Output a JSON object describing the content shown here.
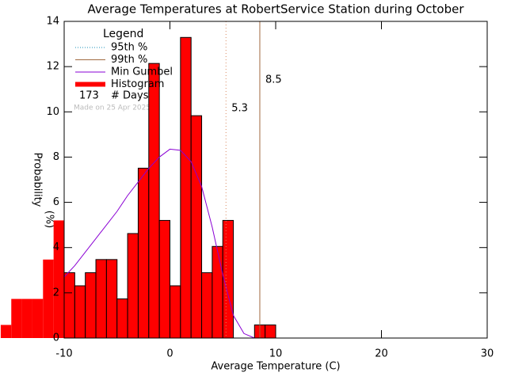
{
  "chart_data": {
    "type": "histogram",
    "title": "Average Temperatures at RobertService Station during October",
    "xlabel": "Average Temperature (C)",
    "ylabel": [
      "Probability",
      "(%)"
    ],
    "bins": [
      -16,
      -15,
      -14,
      -13,
      -12,
      -11,
      -10,
      -9,
      -8,
      -7,
      -6,
      -5,
      -4,
      -3,
      -2,
      -1,
      0,
      1,
      2,
      3,
      4,
      5,
      6,
      7,
      8,
      9,
      10
    ],
    "values": [
      0.58,
      1.73,
      1.73,
      1.73,
      3.47,
      5.2,
      2.89,
      2.31,
      2.89,
      3.47,
      3.47,
      1.73,
      4.62,
      7.51,
      12.14,
      5.2,
      2.31,
      13.29,
      9.83,
      2.89,
      4.05,
      5.2,
      0,
      0,
      0.58,
      0.58
    ],
    "color": "#ff0000",
    "xlim": [
      -10,
      30
    ],
    "ylim": [
      0,
      14
    ],
    "xticks": [
      -10,
      0,
      10,
      20,
      30
    ],
    "yticks": [
      0,
      2,
      4,
      6,
      8,
      10,
      12,
      14
    ],
    "gumbel": {
      "name": "Min Gumbel",
      "color": "#8a00d4",
      "x": [
        -10,
        -9,
        -8,
        -7,
        -6,
        -5,
        -4,
        -3,
        -2,
        -1,
        0,
        1,
        2,
        3,
        4,
        5,
        6,
        7,
        8
      ],
      "values": [
        2.7,
        3.2,
        3.8,
        4.4,
        5.0,
        5.6,
        6.3,
        6.9,
        7.5,
        8.0,
        8.35,
        8.3,
        7.8,
        6.7,
        4.9,
        2.8,
        1.0,
        0.2,
        0.0
      ]
    },
    "percentiles": [
      {
        "name": "95th %",
        "value": 5.3,
        "color": "#1a8fb8",
        "line_color": "#d88a60",
        "style": "dotted"
      },
      {
        "name": "99th %",
        "value": 8.5,
        "color": "#a06a40",
        "line_color": "#a06a40",
        "style": "solid"
      }
    ],
    "legend_title": "Legend",
    "histogram_name": "Histogram",
    "days": 173,
    "days_label": "# Days",
    "note": "Made on 25 Apr 2025"
  }
}
